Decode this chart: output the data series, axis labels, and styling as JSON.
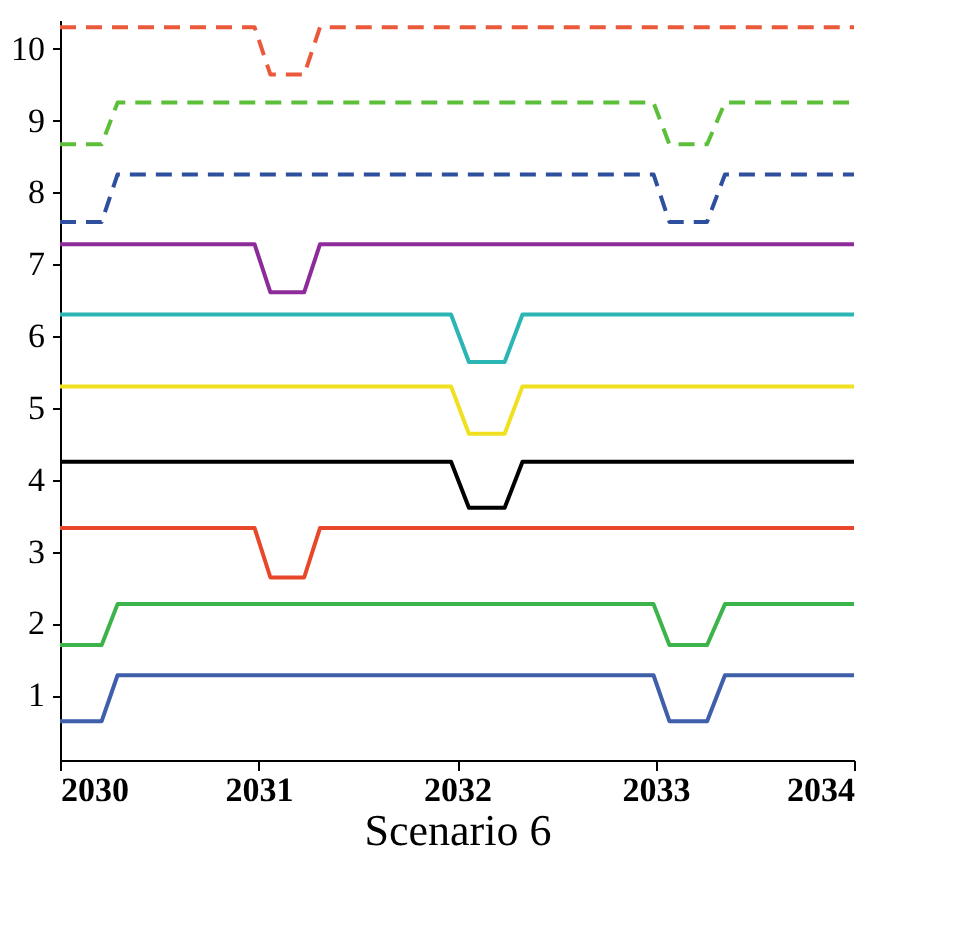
{
  "chart_data": {
    "type": "line",
    "xlabel": "Scenario 6",
    "xlim": [
      2030,
      2034
    ],
    "xticks": [
      2030,
      2031,
      2032,
      2033,
      2034
    ],
    "ylim": [
      0.1,
      10.4
    ],
    "yticks": [
      1,
      2,
      3,
      4,
      5,
      6,
      7,
      8,
      9,
      10
    ],
    "series": [
      {
        "color": "#3f5faa",
        "line_style": "solid",
        "x": [
          2030,
          2030.21,
          2030.29,
          2032.99,
          2033.07,
          2033.26,
          2033.35,
          2034
        ],
        "values": [
          0.64,
          0.64,
          1.28,
          1.28,
          0.64,
          0.64,
          1.28,
          1.28
        ]
      },
      {
        "color": "#3cb44b",
        "line_style": "solid",
        "x": [
          2030,
          2030.21,
          2030.29,
          2032.99,
          2033.07,
          2033.26,
          2033.35,
          2034
        ],
        "values": [
          1.7,
          1.7,
          2.27,
          2.27,
          1.7,
          1.7,
          2.27,
          2.27
        ]
      },
      {
        "color": "#e8472a",
        "line_style": "solid",
        "x": [
          2030,
          2030.98,
          2031.06,
          2031.23,
          2031.31,
          2034
        ],
        "values": [
          3.33,
          3.33,
          2.64,
          2.64,
          3.33,
          3.33
        ]
      },
      {
        "color": "#000000",
        "line_style": "solid",
        "x": [
          2030,
          2031.97,
          2032.06,
          2032.24,
          2032.33,
          2034
        ],
        "values": [
          4.25,
          4.25,
          3.61,
          3.61,
          4.25,
          4.25
        ]
      },
      {
        "color": "#f0e020",
        "line_style": "solid",
        "x": [
          2030,
          2031.97,
          2032.06,
          2032.24,
          2032.33,
          2034
        ],
        "values": [
          5.3,
          5.3,
          4.64,
          4.64,
          5.3,
          5.3
        ]
      },
      {
        "color": "#2bb5b5",
        "line_style": "solid",
        "x": [
          2030,
          2031.97,
          2032.06,
          2032.24,
          2032.33,
          2034
        ],
        "values": [
          6.3,
          6.3,
          5.64,
          5.64,
          6.3,
          6.3
        ]
      },
      {
        "color": "#8e2b9a",
        "line_style": "solid",
        "x": [
          2030,
          2030.98,
          2031.06,
          2031.23,
          2031.31,
          2034
        ],
        "values": [
          7.28,
          7.28,
          6.61,
          6.61,
          7.28,
          7.28
        ]
      },
      {
        "color": "#2d4f9e",
        "line_style": "dashed",
        "x": [
          2030,
          2030.21,
          2030.29,
          2032.99,
          2033.07,
          2033.26,
          2033.35,
          2034
        ],
        "values": [
          7.59,
          7.59,
          8.25,
          8.25,
          7.59,
          7.59,
          8.25,
          8.25
        ]
      },
      {
        "color": "#5cbf3a",
        "line_style": "dashed",
        "x": [
          2030,
          2030.21,
          2030.29,
          2032.99,
          2033.07,
          2033.26,
          2033.35,
          2034
        ],
        "values": [
          8.67,
          8.67,
          9.25,
          9.25,
          8.67,
          8.67,
          9.25,
          9.25
        ]
      },
      {
        "color": "#ea5a3a",
        "line_style": "dashed",
        "x": [
          2030,
          2030.98,
          2031.06,
          2031.23,
          2031.31,
          2034
        ],
        "values": [
          10.3,
          10.3,
          9.64,
          9.64,
          10.3,
          10.3
        ]
      }
    ]
  }
}
